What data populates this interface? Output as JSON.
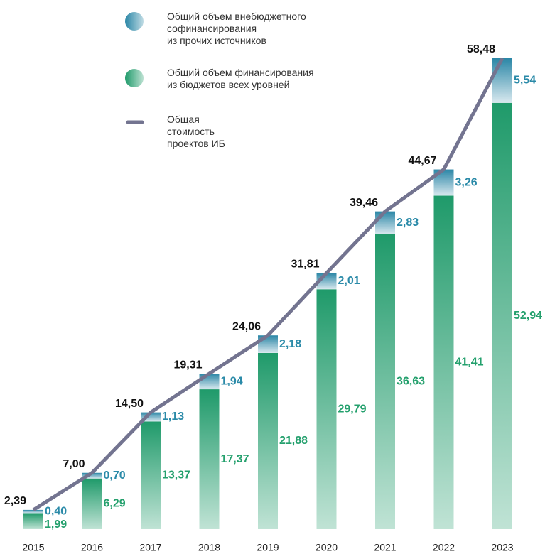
{
  "chart_data": {
    "type": "bar",
    "categories": [
      "2015",
      "2016",
      "2017",
      "2018",
      "2019",
      "2020",
      "2021",
      "2022",
      "2023"
    ],
    "stacked": true,
    "series": [
      {
        "name": "Общий объем финансирования\nиз бюджетов всех уровней",
        "type": "bar",
        "color": "#1f9a6a",
        "values": [
          1.99,
          6.29,
          13.37,
          17.37,
          21.88,
          29.79,
          36.63,
          41.41,
          52.94
        ],
        "value_labels": [
          "1,99",
          "6,29",
          "13,37",
          "17,37",
          "21,88",
          "29,79",
          "36,63",
          "41,41",
          "52,94"
        ]
      },
      {
        "name": "Общий объем внебюджетного\nсофинансирования\nиз прочих источников",
        "type": "bar",
        "color": "#2a86a6",
        "values": [
          0.4,
          0.7,
          1.13,
          1.94,
          2.18,
          2.01,
          2.83,
          3.26,
          5.54
        ],
        "value_labels": [
          "0,40",
          "0,70",
          "1,13",
          "1,94",
          "2,18",
          "2,01",
          "2,83",
          "3,26",
          "5,54"
        ]
      },
      {
        "name": "Общая\nстоимость\nпроектов ИБ",
        "type": "line",
        "color": "#737490",
        "values": [
          2.39,
          7.0,
          14.5,
          19.31,
          24.06,
          31.81,
          39.46,
          44.67,
          58.48
        ],
        "value_labels": [
          "2,39",
          "7,00",
          "14,50",
          "19,31",
          "24,06",
          "31,81",
          "39,46",
          "44,67",
          "58,48"
        ]
      }
    ]
  }
}
